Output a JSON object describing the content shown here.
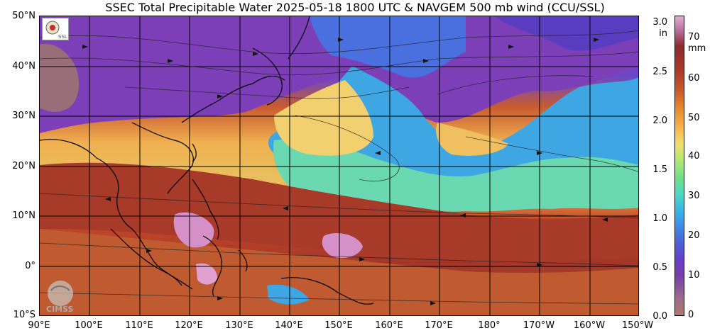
{
  "title": "SSEC Total Precipitable Water  2025-05-18 1800 UTC & NAVGEM 500 mb wind (CCU/SSL)",
  "map": {
    "lat_labels": [
      "50°N",
      "40°N",
      "30°N",
      "20°N",
      "10°N",
      "0°",
      "10°S"
    ],
    "lon_labels": [
      "90°E",
      "100°E",
      "110°E",
      "120°E",
      "130°E",
      "140°E",
      "150°E",
      "160°E",
      "170°E",
      "180°",
      "170°W",
      "160°W",
      "150°W"
    ]
  },
  "colorbar": {
    "unit_in": "in",
    "unit_mm": "mm",
    "in_ticks": [
      "3.0",
      "2.5",
      "2.0",
      "1.5",
      "1.0",
      "0.5",
      "0.0"
    ],
    "mm_ticks": [
      "70",
      "60",
      "50",
      "40",
      "30",
      "20",
      "10",
      "0"
    ]
  },
  "logos": {
    "ssl_text": "SSL",
    "cimss_text": "CIMSS"
  },
  "colors": {
    "dry": "#7a3ea8",
    "moderate": "#4ad6c8",
    "moist": "#f0a040",
    "very_moist": "#a83a2a",
    "extreme": "#d890c0"
  }
}
